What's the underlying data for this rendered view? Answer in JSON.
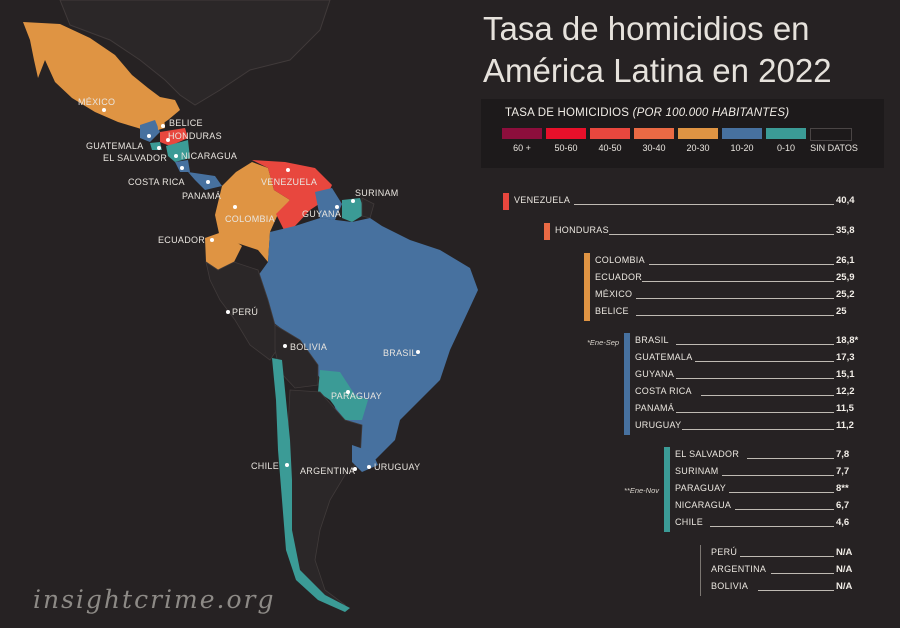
{
  "title": "Tasa de homicidios en América Latina en 2022",
  "legend": {
    "title": "TASA DE HOMICIDIOS",
    "title_note": "(POR 100.000 HABITANTES)",
    "items": [
      {
        "label": "60 +",
        "color": "#8c0e3c"
      },
      {
        "label": "50-60",
        "color": "#e8102a"
      },
      {
        "label": "40-50",
        "color": "#e8473e"
      },
      {
        "label": "30-40",
        "color": "#ea6a44"
      },
      {
        "label": "20-30",
        "color": "#df9443"
      },
      {
        "label": "10-20",
        "color": "#47719f"
      },
      {
        "label": "0-10",
        "color": "#3b9b96"
      },
      {
        "label": "SIN DATOS",
        "color": "#1d1a1b"
      }
    ]
  },
  "ranking": [
    {
      "country": "VENEZUELA",
      "value": "40,4",
      "color": "#e8473e"
    },
    {
      "country": "HONDURAS",
      "value": "35,8",
      "color": "#ea6a44"
    },
    {
      "country": "COLOMBIA",
      "value": "26,1",
      "color": "#df9443"
    },
    {
      "country": "ECUADOR",
      "value": "25,9",
      "color": "#df9443"
    },
    {
      "country": "MÉXICO",
      "value": "25,2",
      "color": "#df9443"
    },
    {
      "country": "BELICE",
      "value": "25",
      "color": "#df9443"
    },
    {
      "country": "BRASIL",
      "value": "18,8*",
      "color": "#47719f"
    },
    {
      "country": "GUATEMALA",
      "value": "17,3",
      "color": "#47719f"
    },
    {
      "country": "GUYANA",
      "value": "15,1",
      "color": "#47719f"
    },
    {
      "country": "COSTA RICA",
      "value": "12,2",
      "color": "#47719f"
    },
    {
      "country": "PANAMÁ",
      "value": "11,5",
      "color": "#47719f"
    },
    {
      "country": "URUGUAY",
      "value": "11,2",
      "color": "#47719f"
    },
    {
      "country": "EL SALVADOR",
      "value": "7,8",
      "color": "#3b9b96"
    },
    {
      "country": "SURINAM",
      "value": "7,7",
      "color": "#3b9b96"
    },
    {
      "country": "PARAGUAY",
      "value": "8**",
      "color": "#3b9b96"
    },
    {
      "country": "NICARAGUA",
      "value": "6,7",
      "color": "#3b9b96"
    },
    {
      "country": "CHILE",
      "value": "4,6",
      "color": "#3b9b96"
    },
    {
      "country": "PERÚ",
      "value": "N/A",
      "color": "#1d1a1b"
    },
    {
      "country": "ARGENTINA",
      "value": "N/A",
      "color": "#1d1a1b"
    },
    {
      "country": "BOLIVIA",
      "value": "N/A",
      "color": "#1d1a1b"
    }
  ],
  "notes": {
    "brasil": "*Ene-Sep",
    "paraguay": "**Ene-Nov"
  },
  "map_labels": {
    "mexico": "MÉXICO",
    "belice": "BELICE",
    "honduras": "HONDURAS",
    "guatemala": "GUATEMALA",
    "el_salvador": "EL SALVADOR",
    "nicaragua": "NICARAGUA",
    "costa_rica": "COSTA RICA",
    "panama": "PANAMÁ",
    "venezuela": "VENEZUELA",
    "surinam": "SURINAM",
    "colombia": "COLOMBIA",
    "guyana": "GUYANA",
    "ecuador": "ECUADOR",
    "peru": "PERÚ",
    "bolivia": "BOLIVIA",
    "brasil": "BRASIL",
    "paraguay": "PARAGUAY",
    "chile": "CHILE",
    "argentina": "ARGENTINA",
    "uruguay": "URUGUAY"
  },
  "credit": "insightcrime.org"
}
